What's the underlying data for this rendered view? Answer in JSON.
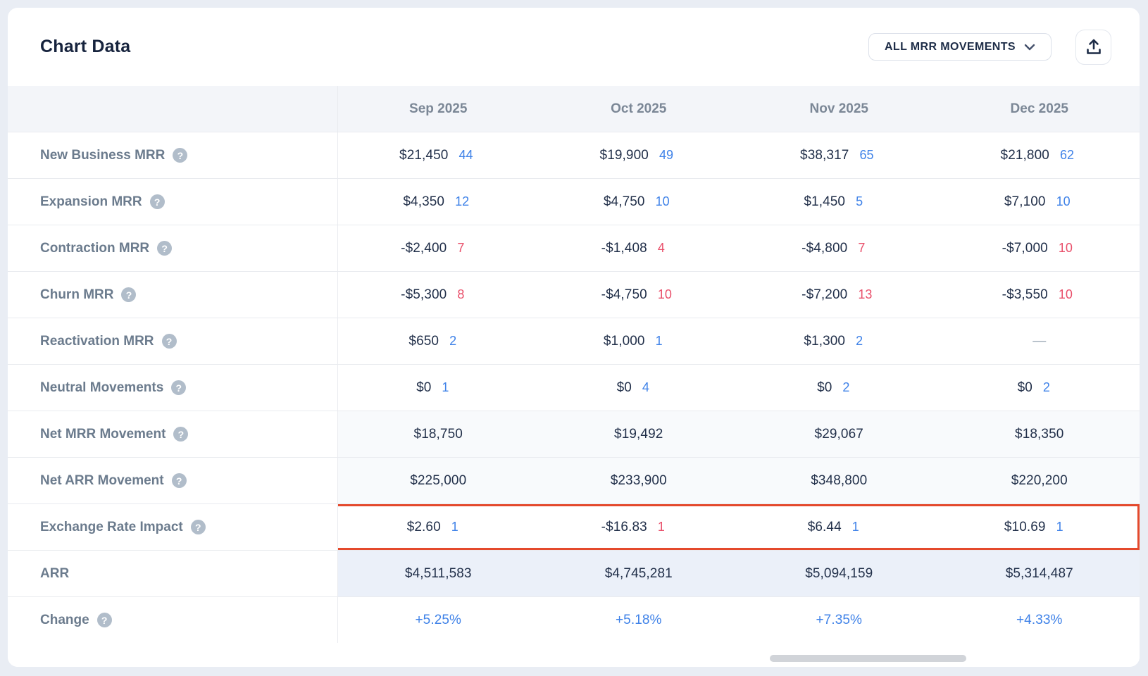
{
  "card": {
    "title": "Chart Data",
    "filter_button": {
      "label": "ALL MRR MOVEMENTS"
    },
    "export_button": {
      "icon": "upload-icon"
    }
  },
  "colors": {
    "accent_blue": "#3f82e8",
    "negative_red": "#e9506b",
    "highlight_border": "#e4492c",
    "title_navy": "#16233d",
    "label_gray": "#6b7b8d"
  },
  "table": {
    "columns": [
      "Sep 2025",
      "Oct 2025",
      "Nov 2025",
      "Dec 2025"
    ],
    "rows": [
      {
        "label": "New Business MRR",
        "help": true,
        "cells": [
          {
            "value": "$21,450",
            "count": "44",
            "count_tone": "pos"
          },
          {
            "value": "$19,900",
            "count": "49",
            "count_tone": "pos"
          },
          {
            "value": "$38,317",
            "count": "65",
            "count_tone": "pos"
          },
          {
            "value": "$21,800",
            "count": "62",
            "count_tone": "pos"
          }
        ]
      },
      {
        "label": "Expansion MRR",
        "help": true,
        "cells": [
          {
            "value": "$4,350",
            "count": "12",
            "count_tone": "pos"
          },
          {
            "value": "$4,750",
            "count": "10",
            "count_tone": "pos"
          },
          {
            "value": "$1,450",
            "count": "5",
            "count_tone": "pos"
          },
          {
            "value": "$7,100",
            "count": "10",
            "count_tone": "pos"
          }
        ]
      },
      {
        "label": "Contraction MRR",
        "help": true,
        "cells": [
          {
            "value": "-$2,400",
            "count": "7",
            "count_tone": "neg"
          },
          {
            "value": "-$1,408",
            "count": "4",
            "count_tone": "neg"
          },
          {
            "value": "-$4,800",
            "count": "7",
            "count_tone": "neg"
          },
          {
            "value": "-$7,000",
            "count": "10",
            "count_tone": "neg"
          }
        ]
      },
      {
        "label": "Churn MRR",
        "help": true,
        "cells": [
          {
            "value": "-$5,300",
            "count": "8",
            "count_tone": "neg"
          },
          {
            "value": "-$4,750",
            "count": "10",
            "count_tone": "neg"
          },
          {
            "value": "-$7,200",
            "count": "13",
            "count_tone": "neg"
          },
          {
            "value": "-$3,550",
            "count": "10",
            "count_tone": "neg"
          }
        ]
      },
      {
        "label": "Reactivation MRR",
        "help": true,
        "cells": [
          {
            "value": "$650",
            "count": "2",
            "count_tone": "pos"
          },
          {
            "value": "$1,000",
            "count": "1",
            "count_tone": "pos"
          },
          {
            "value": "$1,300",
            "count": "2",
            "count_tone": "pos"
          },
          {
            "value": "—",
            "dash": true
          }
        ]
      },
      {
        "label": "Neutral Movements",
        "help": true,
        "cells": [
          {
            "value": "$0",
            "count": "1",
            "count_tone": "pos"
          },
          {
            "value": "$0",
            "count": "4",
            "count_tone": "pos"
          },
          {
            "value": "$0",
            "count": "2",
            "count_tone": "pos"
          },
          {
            "value": "$0",
            "count": "2",
            "count_tone": "pos"
          }
        ]
      },
      {
        "label": "Net MRR Movement",
        "help": true,
        "shade": "light",
        "cells": [
          {
            "value": "$18,750"
          },
          {
            "value": "$19,492"
          },
          {
            "value": "$29,067"
          },
          {
            "value": "$18,350"
          }
        ]
      },
      {
        "label": "Net ARR Movement",
        "help": true,
        "shade": "light",
        "cells": [
          {
            "value": "$225,000"
          },
          {
            "value": "$233,900"
          },
          {
            "value": "$348,800"
          },
          {
            "value": "$220,200"
          }
        ]
      },
      {
        "label": "Exchange Rate Impact",
        "help": true,
        "highlight": true,
        "cells": [
          {
            "value": "$2.60",
            "count": "1",
            "count_tone": "pos"
          },
          {
            "value": "-$16.83",
            "count": "1",
            "count_tone": "neg"
          },
          {
            "value": "$6.44",
            "count": "1",
            "count_tone": "pos"
          },
          {
            "value": "$10.69",
            "count": "1",
            "count_tone": "pos"
          }
        ]
      },
      {
        "label": "ARR",
        "help": false,
        "shade": "blue",
        "cells": [
          {
            "value": "$4,511,583"
          },
          {
            "value": "$4,745,281"
          },
          {
            "value": "$5,094,159"
          },
          {
            "value": "$5,314,487"
          }
        ]
      },
      {
        "label": "Change",
        "help": true,
        "cells": [
          {
            "value": "+5.25%",
            "tone": "accent"
          },
          {
            "value": "+5.18%",
            "tone": "accent"
          },
          {
            "value": "+7.35%",
            "tone": "accent"
          },
          {
            "value": "+4.33%",
            "tone": "accent"
          }
        ]
      }
    ]
  }
}
